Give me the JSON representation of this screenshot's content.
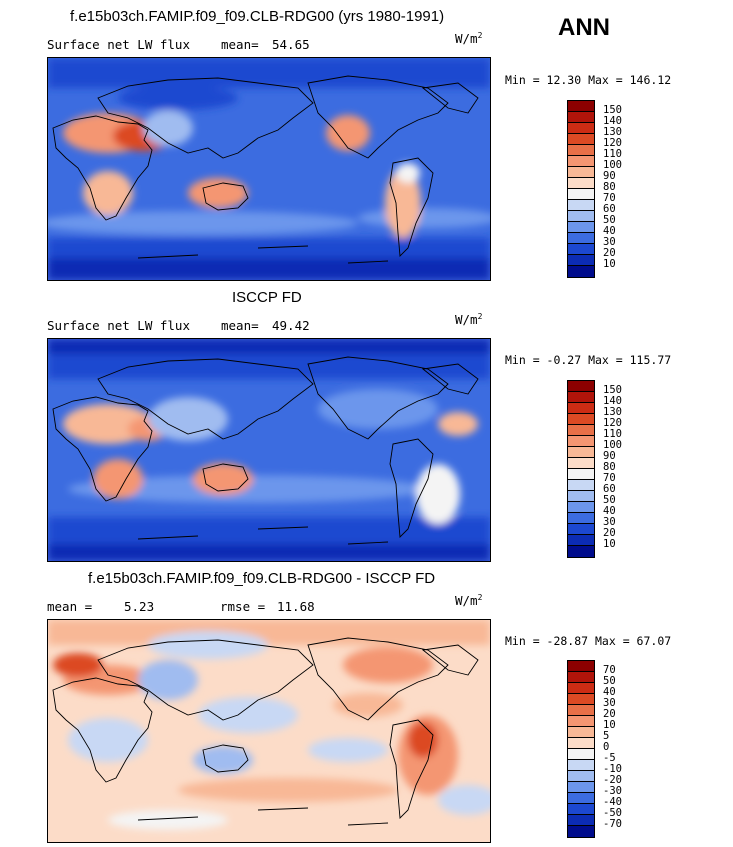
{
  "season": "ANN",
  "panels": [
    {
      "title": "f.e15b03ch.FAMIP.f09_f09.CLB-RDG00 (yrs 1980-1991)",
      "left_label": "Surface net LW flux",
      "stat_label": "mean=",
      "stat_value": "54.65",
      "rmse_label": "",
      "rmse_value": "",
      "units": "W/m",
      "units_exp": "2",
      "minmax": "Min =  12.30 Max = 146.12",
      "colorbar": {
        "labels": [
          "150",
          "140",
          "130",
          "120",
          "110",
          "100",
          "90",
          "80",
          "70",
          "60",
          "50",
          "40",
          "30",
          "20",
          "10"
        ],
        "colors": [
          "#8c0000",
          "#b0140a",
          "#cc2c14",
          "#dc4a24",
          "#e87048",
          "#f49672",
          "#f8b896",
          "#fcdcc8",
          "#f4f4f4",
          "#c8d8f4",
          "#a0bcf0",
          "#6c96ec",
          "#3c6ce0",
          "#1c48d0",
          "#0c2cb4",
          "#000c8c"
        ]
      }
    },
    {
      "title": "ISCCP FD",
      "left_label": "Surface net LW flux",
      "stat_label": "mean=",
      "stat_value": "49.42",
      "rmse_label": "",
      "rmse_value": "",
      "units": "W/m",
      "units_exp": "2",
      "minmax": "Min =  -0.27 Max = 115.77",
      "colorbar": {
        "labels": [
          "150",
          "140",
          "130",
          "120",
          "110",
          "100",
          "90",
          "80",
          "70",
          "60",
          "50",
          "40",
          "30",
          "20",
          "10"
        ],
        "colors": [
          "#8c0000",
          "#b0140a",
          "#cc2c14",
          "#dc4a24",
          "#e87048",
          "#f49672",
          "#f8b896",
          "#fcdcc8",
          "#f4f4f4",
          "#c8d8f4",
          "#a0bcf0",
          "#6c96ec",
          "#3c6ce0",
          "#1c48d0",
          "#0c2cb4",
          "#000c8c"
        ]
      }
    },
    {
      "title": "f.e15b03ch.FAMIP.f09_f09.CLB-RDG00 - ISCCP FD",
      "left_label": "",
      "stat_label": "mean =",
      "stat_value": "5.23",
      "rmse_label": "rmse =",
      "rmse_value": "11.68",
      "units": "W/m",
      "units_exp": "2",
      "minmax": "Min = -28.87 Max =  67.07",
      "colorbar": {
        "labels": [
          "70",
          "50",
          "40",
          "30",
          "20",
          "10",
          "5",
          "0",
          "-5",
          "-10",
          "-20",
          "-30",
          "-40",
          "-50",
          "-70"
        ],
        "colors": [
          "#8c0000",
          "#b0140a",
          "#cc2c14",
          "#dc4a24",
          "#e87048",
          "#f49672",
          "#f8b896",
          "#fcdcc8",
          "#f4f4f4",
          "#c8d8f4",
          "#a0bcf0",
          "#6c96ec",
          "#3c6ce0",
          "#1c48d0",
          "#0c2cb4",
          "#000c8c"
        ]
      }
    }
  ]
}
